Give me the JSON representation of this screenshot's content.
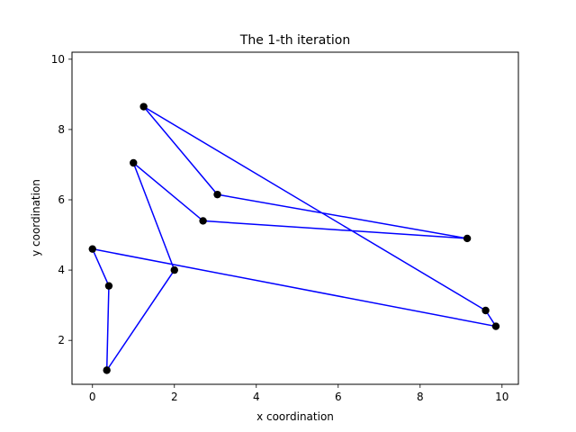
{
  "chart_data": {
    "type": "line",
    "title": "The 1-th iteration",
    "xlabel": "x coordination",
    "ylabel": "y coordination",
    "xlim": [
      -0.5,
      10.4
    ],
    "ylim": [
      0.75,
      10.2
    ],
    "xticks": [
      0,
      2,
      4,
      6,
      8,
      10
    ],
    "yticks": [
      2,
      4,
      6,
      8,
      10
    ],
    "grid": false,
    "line_color": "#0000ff",
    "point_color": "#000000",
    "x": [
      0.0,
      0.4,
      0.35,
      2.0,
      1.0,
      2.7,
      9.15,
      3.05,
      1.25,
      9.6,
      9.85,
      0.0
    ],
    "y": [
      4.6,
      3.55,
      1.15,
      4.0,
      7.05,
      5.4,
      4.9,
      6.15,
      8.65,
      2.85,
      2.4,
      4.6
    ]
  }
}
